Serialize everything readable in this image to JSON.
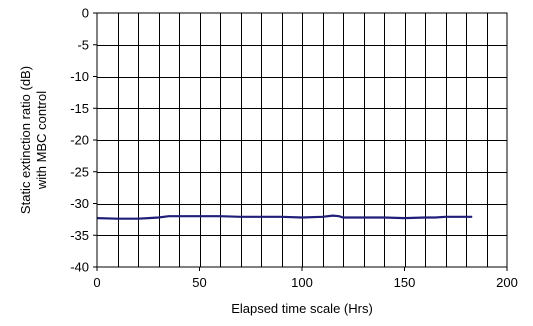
{
  "chart_data": {
    "type": "line",
    "title": "",
    "xlabel": "Elapsed time scale (Hrs)",
    "ylabel_lines": [
      "Static extinction ratio (dB)",
      "with MBC control"
    ],
    "xlim": [
      0,
      200
    ],
    "ylim": [
      -40,
      0
    ],
    "x_ticks": [
      0,
      50,
      100,
      150,
      200
    ],
    "y_ticks": [
      0,
      -5,
      -10,
      -15,
      -20,
      -25,
      -30,
      -35,
      -40
    ],
    "x_grid_step": 10,
    "grid": true,
    "legend": "none",
    "line_color": "#1f1f7a",
    "series": [
      {
        "x": [
          0,
          10,
          20,
          25,
          30,
          35,
          40,
          50,
          60,
          70,
          80,
          90,
          100,
          110,
          115,
          118,
          120,
          130,
          140,
          150,
          160,
          165,
          170,
          175,
          180,
          183
        ],
        "y": [
          -32.3,
          -32.4,
          -32.4,
          -32.3,
          -32.2,
          -32.0,
          -32.0,
          -32.0,
          -32.0,
          -32.1,
          -32.1,
          -32.1,
          -32.2,
          -32.1,
          -31.9,
          -32.0,
          -32.2,
          -32.2,
          -32.2,
          -32.3,
          -32.2,
          -32.2,
          -32.1,
          -32.1,
          -32.1,
          -32.1
        ]
      }
    ]
  }
}
